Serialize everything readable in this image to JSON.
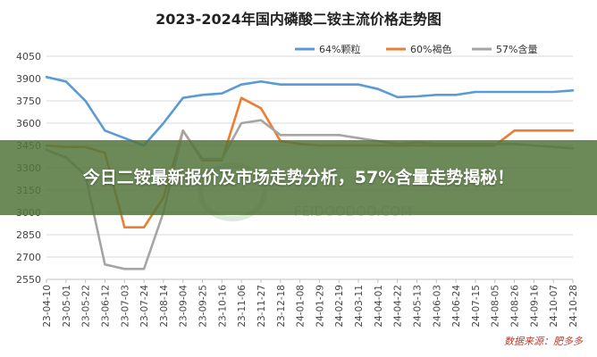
{
  "chart_data": {
    "type": "line",
    "title": "2023-2024年国内磷酸二铵主流价格走势图",
    "source": "数据来源：肥多多",
    "watermark": "FEIDOODOO.COM",
    "ylim": [
      2550,
      4050
    ],
    "yticks": [
      2550,
      2700,
      2850,
      3000,
      3150,
      3300,
      3450,
      3600,
      3750,
      3900,
      4050
    ],
    "grid": true,
    "legend_position": "top-right",
    "x": [
      "23-04-10",
      "23-05-01",
      "23-05-22",
      "23-06-12",
      "23-07-03",
      "23-07-24",
      "23-08-14",
      "23-09-04",
      "23-09-25",
      "23-10-16",
      "23-11-06",
      "23-11-27",
      "23-12-18",
      "24-01-08",
      "24-01-29",
      "24-02-19",
      "24-03-11",
      "24-04-01",
      "24-04-22",
      "24-05-13",
      "24-06-03",
      "24-06-24",
      "24-07-15",
      "24-08-05",
      "24-08-26",
      "24-09-16",
      "24-10-07",
      "24-10-28"
    ],
    "series": [
      {
        "name": "64%颗粒",
        "color": "#5b9bd5",
        "values": [
          3910,
          3880,
          3750,
          3550,
          3500,
          3450,
          3600,
          3770,
          3790,
          3800,
          3860,
          3880,
          3860,
          3860,
          3860,
          3860,
          3860,
          3830,
          3775,
          3780,
          3790,
          3790,
          3810,
          3810,
          3810,
          3810,
          3810,
          3820
        ]
      },
      {
        "name": "60%褐色",
        "color": "#ed7d31",
        "values": [
          3450,
          3440,
          3440,
          3400,
          2900,
          2900,
          3100,
          3550,
          3350,
          3350,
          3770,
          3700,
          3480,
          3460,
          3450,
          3450,
          3450,
          3450,
          3450,
          3450,
          3450,
          3450,
          3450,
          3450,
          3550,
          3550,
          3550,
          3550
        ]
      },
      {
        "name": "57%含量",
        "color": "#a5a5a5",
        "values": [
          3420,
          3370,
          3250,
          2650,
          2620,
          2620,
          3000,
          3550,
          3360,
          3360,
          3600,
          3620,
          3520,
          3520,
          3520,
          3520,
          3500,
          3480,
          3460,
          3470,
          3460,
          3460,
          3460,
          3460,
          3460,
          3450,
          3440,
          3430
        ]
      }
    ]
  },
  "banner": {
    "text": "今日二铵最新报价及市场走势分析，57%含量走势揭秘！"
  }
}
